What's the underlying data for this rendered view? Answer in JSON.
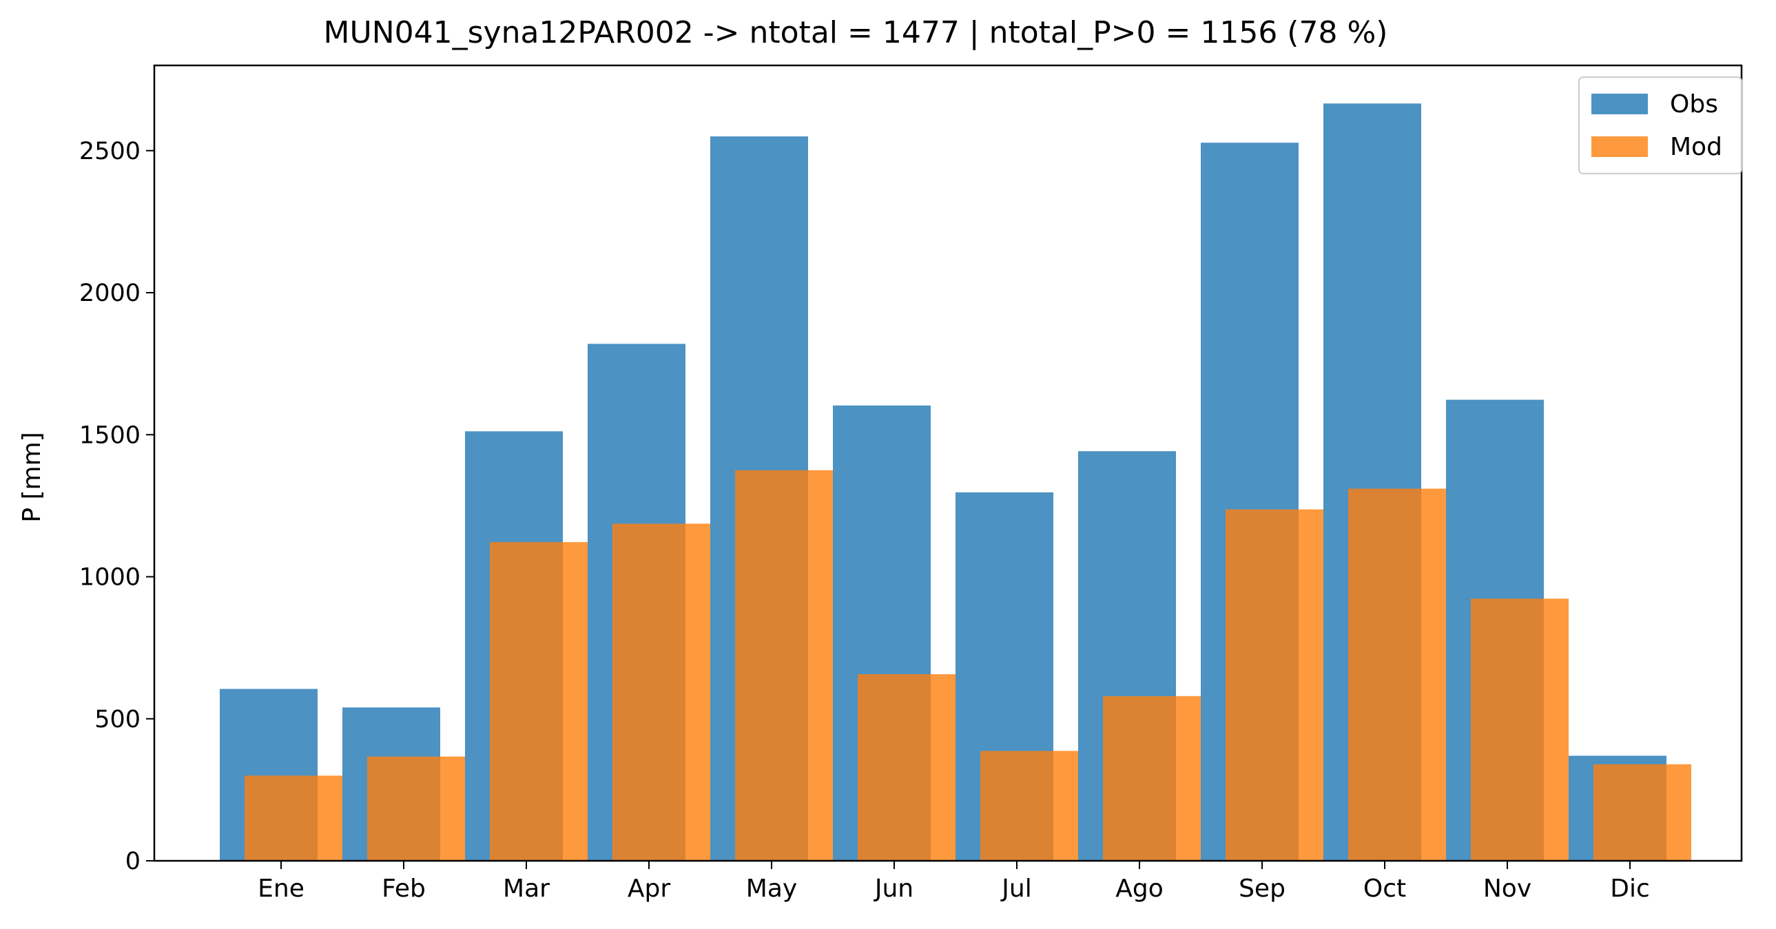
{
  "chart_data": {
    "type": "bar",
    "title": "MUN041_syna12PAR002 -> ntotal = 1477 | ntotal_P>0 = 1156 (78 %)",
    "xlabel": "",
    "ylabel": "P [mm]",
    "ylim": [
      0,
      2800
    ],
    "yticks": [
      0,
      500,
      1000,
      1500,
      2000,
      2500
    ],
    "categories": [
      "Ene",
      "Feb",
      "Mar",
      "Apr",
      "May",
      "Jun",
      "Jul",
      "Ago",
      "Sep",
      "Oct",
      "Nov",
      "Dic"
    ],
    "series": [
      {
        "name": "Obs",
        "color": "#1f77b4",
        "values": [
          605,
          540,
          1512,
          1820,
          2550,
          1603,
          1297,
          1442,
          2528,
          2666,
          1623,
          370
        ]
      },
      {
        "name": "Mod",
        "color": "#ff7f0e",
        "values": [
          300,
          367,
          1122,
          1187,
          1375,
          657,
          387,
          580,
          1237,
          1310,
          923,
          340
        ]
      }
    ],
    "legend_position": "top-right",
    "grid": false
  }
}
